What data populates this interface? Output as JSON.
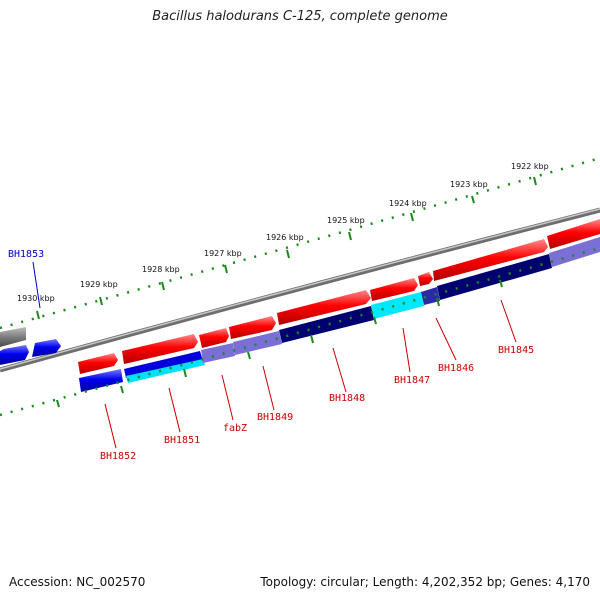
{
  "title": "Bacillus halodurans C-125, complete genome",
  "accession": "Accession: NC_002570",
  "summary": "Topology: circular; Length: 4,202,352 bp; Genes: 4,170",
  "colors": {
    "forward_gene": "#ff0000",
    "reverse_gene": "#0000ee",
    "backbone": "#8c8c8c",
    "tick": "#1a8a1a",
    "label_forward": "#cc0000",
    "label_reverse": "#0000cc",
    "cds_dark": "#000070",
    "cds_cyan": "#00e8ff",
    "cds_light": "#7b6fd6"
  },
  "tick_labels": [
    "1922 kbp",
    "1923 kbp",
    "1924 kbp",
    "1925 kbp",
    "1926 kbp",
    "1927 kbp",
    "1928 kbp",
    "1929 kbp",
    "1930 kbp"
  ],
  "gene_labels": [
    {
      "name": "BH1853",
      "strand": "reverse"
    },
    {
      "name": "BH1852",
      "strand": "forward"
    },
    {
      "name": "BH1851",
      "strand": "forward"
    },
    {
      "name": "fabZ",
      "strand": "forward"
    },
    {
      "name": "BH1849",
      "strand": "forward"
    },
    {
      "name": "BH1848",
      "strand": "forward"
    },
    {
      "name": "BH1847",
      "strand": "forward"
    },
    {
      "name": "BH1846",
      "strand": "forward"
    },
    {
      "name": "BH1845",
      "strand": "forward"
    }
  ]
}
